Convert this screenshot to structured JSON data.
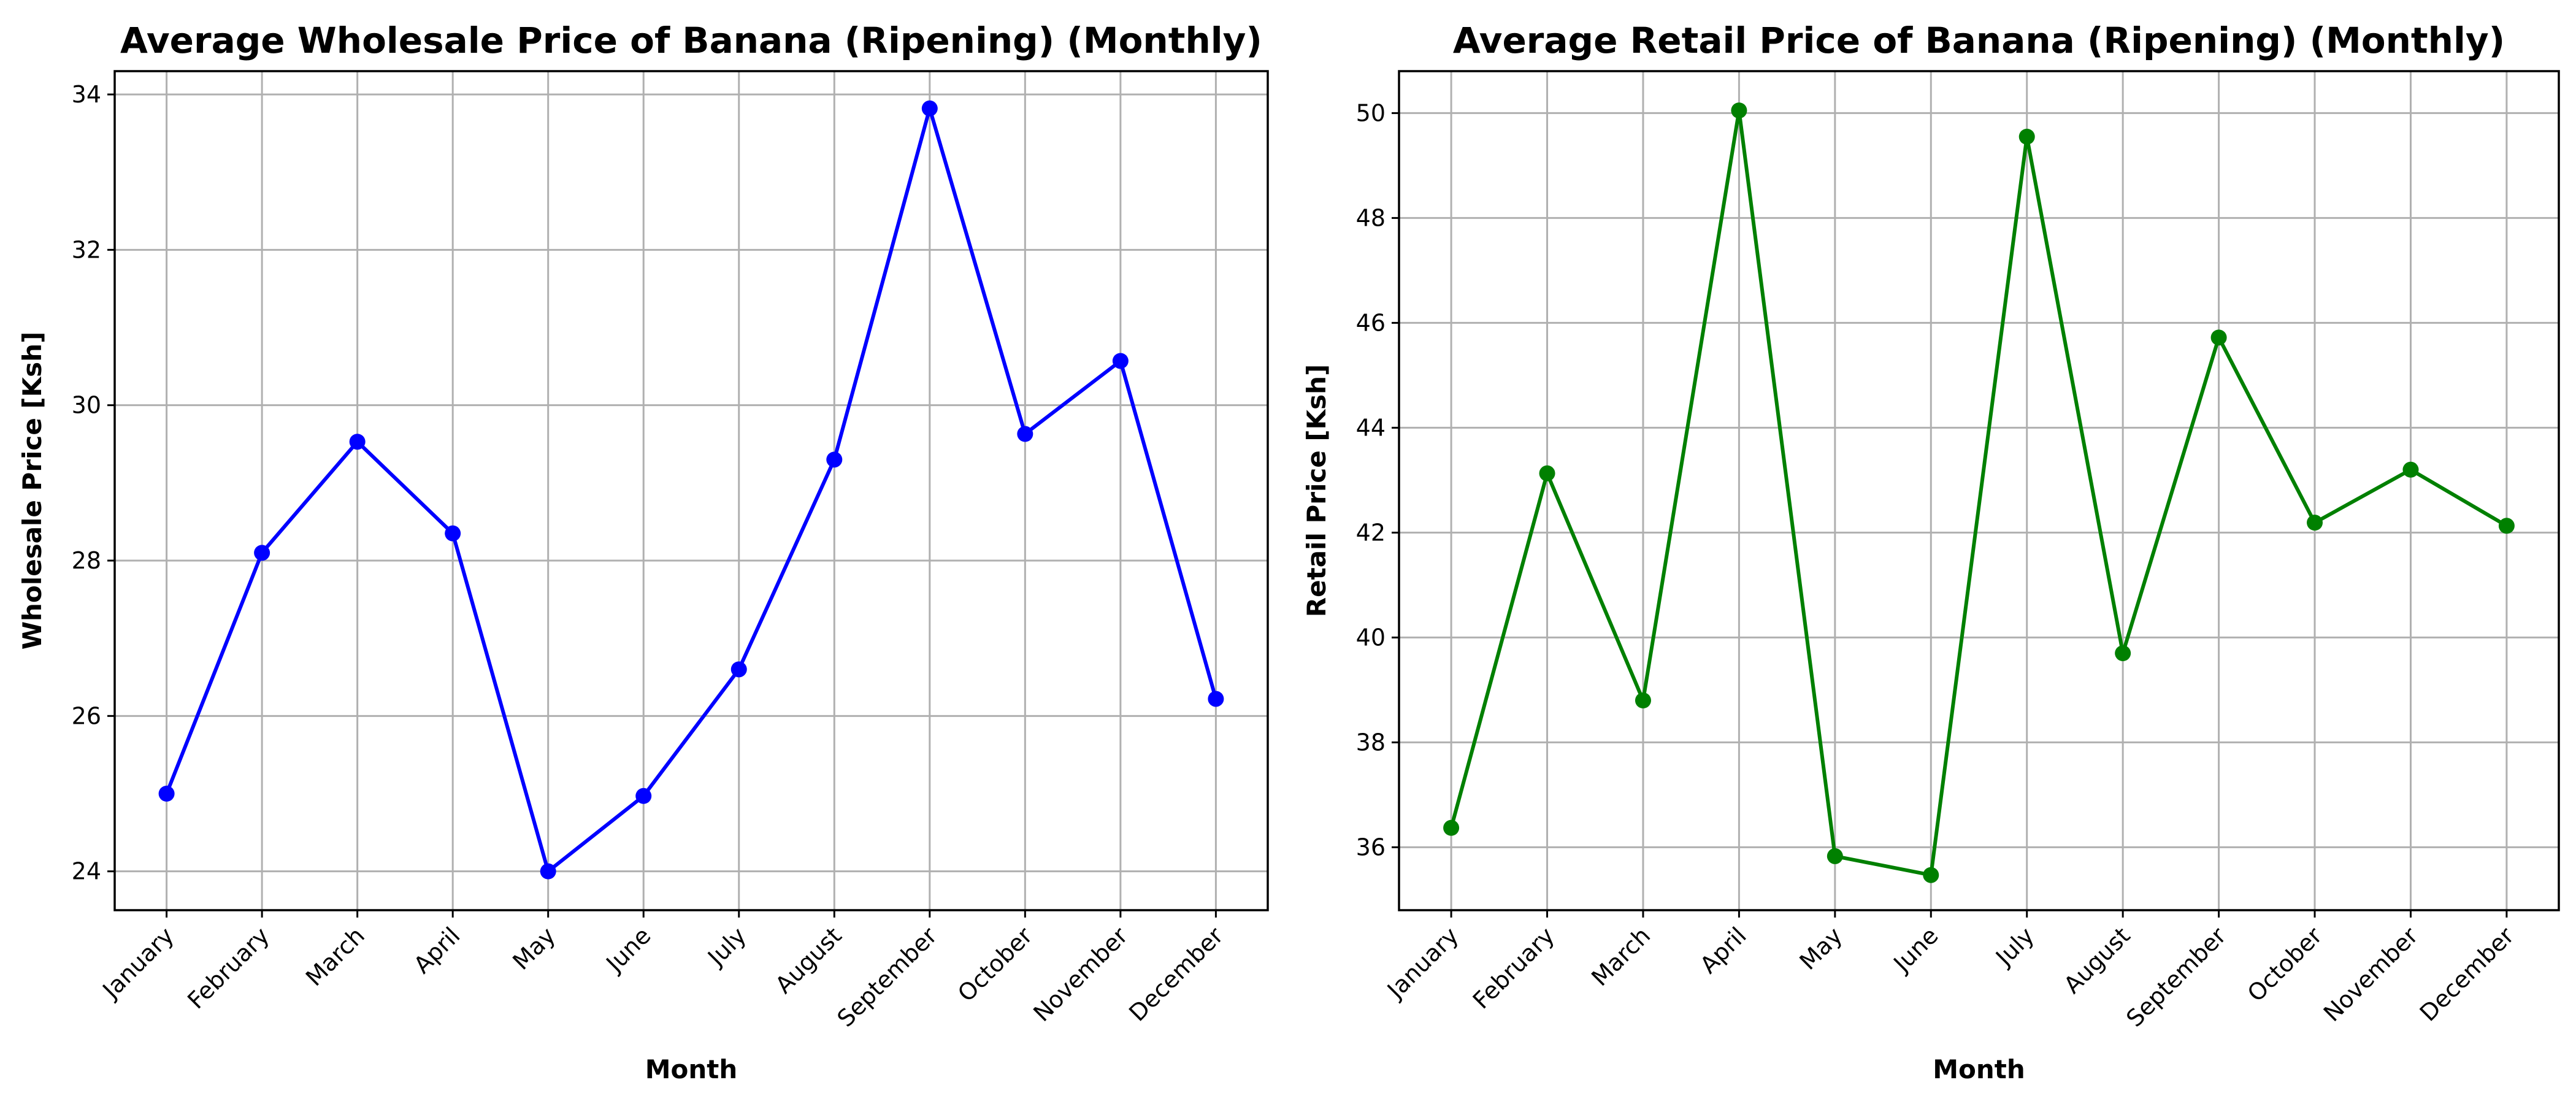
{
  "chart_data": [
    {
      "type": "line",
      "title": "Average Wholesale Price of Banana (Ripening) (Monthly)",
      "xlabel": "Month",
      "ylabel": "Wholesale Price [Ksh]",
      "categories": [
        "January",
        "February",
        "March",
        "April",
        "May",
        "June",
        "July",
        "August",
        "September",
        "October",
        "November",
        "December"
      ],
      "values": [
        25.0,
        28.1,
        29.53,
        28.35,
        24.0,
        24.97,
        26.6,
        29.3,
        33.82,
        29.63,
        30.57,
        26.22
      ],
      "yticks": [
        "24",
        "26",
        "28",
        "30",
        "32",
        "34"
      ],
      "ylim": [
        23.5,
        34.3
      ],
      "color": "#0000ff",
      "grid": true,
      "marker": "circle"
    },
    {
      "type": "line",
      "title": "Average Retail Price of Banana (Ripening) (Monthly)",
      "xlabel": "Month",
      "ylabel": "Retail Price [Ksh]",
      "categories": [
        "January",
        "February",
        "March",
        "April",
        "May",
        "June",
        "July",
        "August",
        "September",
        "October",
        "November",
        "December"
      ],
      "values": [
        36.37,
        43.13,
        38.8,
        50.05,
        35.83,
        35.47,
        49.55,
        39.7,
        45.72,
        42.19,
        43.2,
        42.13
      ],
      "yticks": [
        "36",
        "38",
        "40",
        "42",
        "44",
        "46",
        "48",
        "50"
      ],
      "ylim": [
        34.8,
        50.8
      ],
      "color": "#008000",
      "grid": true,
      "marker": "circle"
    }
  ]
}
